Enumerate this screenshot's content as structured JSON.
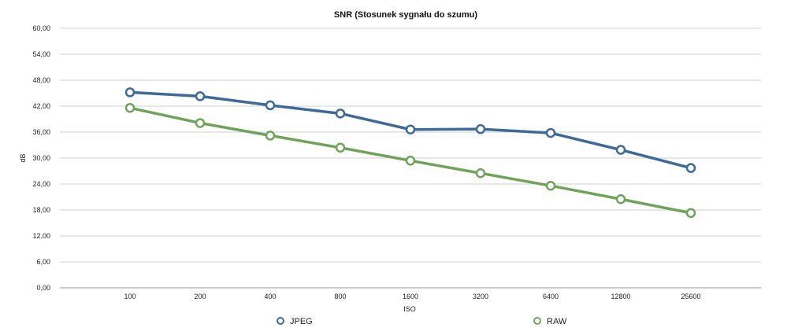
{
  "chart_data": {
    "type": "line",
    "title": "SNR (Stosunek sygnału do szumu)",
    "xlabel": "ISO",
    "ylabel": "dB",
    "categories": [
      "100",
      "200",
      "400",
      "800",
      "1600",
      "3200",
      "6400",
      "12800",
      "25600"
    ],
    "ylim": [
      0,
      60
    ],
    "yticks": [
      "0,00",
      "6,00",
      "12,00",
      "18,00",
      "24,00",
      "30,00",
      "36,00",
      "42,00",
      "48,00",
      "54,00",
      "60,00"
    ],
    "ytick_values": [
      0,
      6,
      12,
      18,
      24,
      30,
      36,
      42,
      48,
      54,
      60
    ],
    "grid": true,
    "legend_position": "bottom",
    "series": [
      {
        "name": "JPEG",
        "color": "#3d6a99",
        "values": [
          45.2,
          44.3,
          42.2,
          40.3,
          36.6,
          36.7,
          35.8,
          31.9,
          27.7
        ]
      },
      {
        "name": "RAW",
        "color": "#6fa35a",
        "values": [
          41.6,
          38.1,
          35.2,
          32.4,
          29.4,
          26.5,
          23.6,
          20.5,
          17.3
        ]
      }
    ]
  }
}
